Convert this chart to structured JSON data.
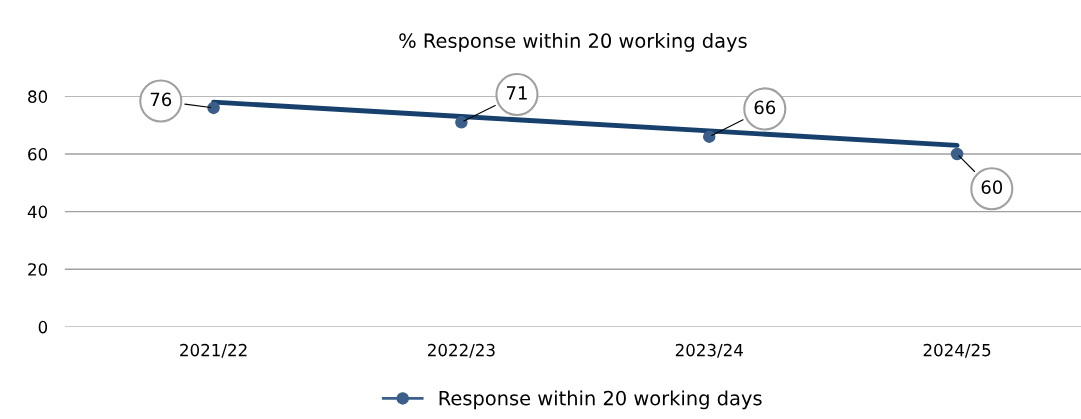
{
  "chart_data": {
    "type": "line",
    "title": "% Response within 20 working days",
    "categories": [
      "2021/22",
      "2022/23",
      "2023/24",
      "2024/25"
    ],
    "series": [
      {
        "name": "Response within 20 working days",
        "color": "#3b5f8a",
        "values": [
          76,
          71,
          66,
          60
        ],
        "value_labels": [
          "76",
          "71",
          "66",
          "60"
        ],
        "type": "scatter",
        "marker": "circle"
      },
      {
        "values": [
          78,
          73,
          68,
          63
        ],
        "color": "#17406d"
      }
    ],
    "ylim": [
      0,
      80
    ],
    "yticks": [
      0,
      20,
      40,
      60,
      80
    ],
    "grid": "y",
    "legend": "bottom"
  }
}
